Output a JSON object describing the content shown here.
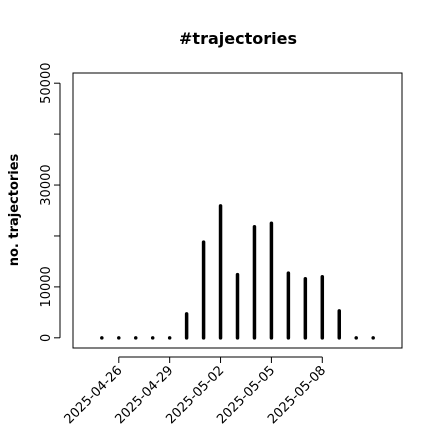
{
  "chart_data": {
    "type": "spike",
    "title": "#trajectories",
    "y_label": "no. trajectories",
    "x": [
      "2025-04-25",
      "2025-04-26",
      "2025-04-27",
      "2025-04-28",
      "2025-04-29",
      "2025-04-30",
      "2025-05-01",
      "2025-05-02",
      "2025-05-03",
      "2025-05-04",
      "2025-05-05",
      "2025-05-06",
      "2025-05-07",
      "2025-05-08",
      "2025-05-09",
      "2025-05-10",
      "2025-05-11"
    ],
    "values": [
      0,
      0,
      0,
      0,
      0,
      4700,
      18800,
      25900,
      12400,
      21800,
      22500,
      12700,
      11600,
      12000,
      5300,
      0,
      0
    ],
    "color": "#000000",
    "xlim": [
      "2025-04-23T07:12",
      "2025-05-12T16:48"
    ],
    "xticks": [
      "2025-04-26",
      "2025-04-29",
      "2025-05-02",
      "2025-05-05",
      "2025-05-08"
    ],
    "ylim": [
      -2000,
      52000
    ],
    "yticks": [
      0,
      10000,
      {
        "value": 20000,
        "label": null
      },
      30000,
      {
        "value": 40000,
        "label": null
      },
      50000
    ]
  }
}
